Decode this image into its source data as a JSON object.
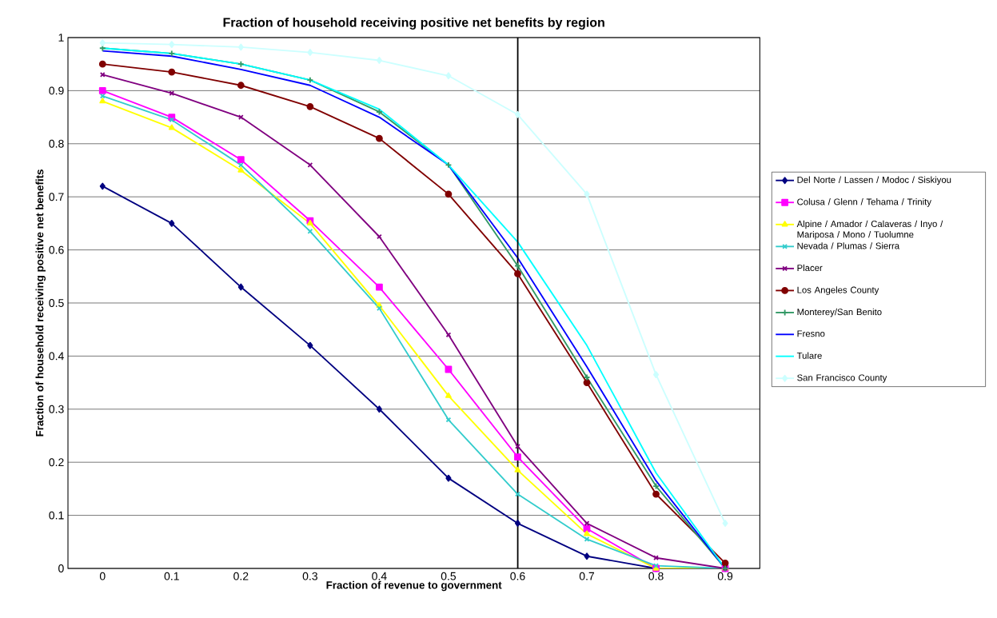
{
  "chart_data": {
    "type": "line",
    "title": "Fraction of household receiving positive net benefits by region",
    "xlabel": "Fraction of revenue to government",
    "ylabel": "Fraction of household receiving positive net benefits",
    "x": [
      0,
      0.1,
      0.2,
      0.3,
      0.4,
      0.5,
      0.6,
      0.7,
      0.8,
      0.9
    ],
    "xlim": [
      -0.05,
      0.95
    ],
    "xticks": [
      0,
      0.1,
      0.2,
      0.3,
      0.4,
      0.5,
      0.6,
      0.7,
      0.8,
      0.9
    ],
    "ylim": [
      0,
      1
    ],
    "yticks": [
      0,
      0.1,
      0.2,
      0.3,
      0.4,
      0.5,
      0.6,
      0.7,
      0.8,
      0.9,
      1
    ],
    "grid": "y",
    "legend": "right",
    "ref_lines": [
      {
        "axis": "x",
        "value": 0.6,
        "color": "#000000"
      }
    ],
    "series": [
      {
        "name": "Del Norte / Lassen / Modoc / Siskiyou",
        "color": "#000080",
        "marker": "diamond",
        "values": [
          0.72,
          0.65,
          0.53,
          0.42,
          0.3,
          0.17,
          0.085,
          0.023,
          0,
          0
        ]
      },
      {
        "name": "Colusa / Glenn / Tehama / Trinity",
        "color": "#ff00ff",
        "marker": "square",
        "values": [
          0.9,
          0.85,
          0.77,
          0.655,
          0.53,
          0.375,
          0.21,
          0.075,
          0,
          0
        ]
      },
      {
        "name": "Alpine / Amador / Calaveras / Inyo / Mariposa / Mono / Tuolumne",
        "color": "#ffff00",
        "marker": "triangle",
        "values": [
          0.88,
          0.83,
          0.75,
          0.65,
          0.495,
          0.325,
          0.185,
          0.065,
          0,
          0
        ]
      },
      {
        "name": "Nevada / Plumas / Sierra",
        "color": "#33cccc",
        "marker": "cross",
        "values": [
          0.89,
          0.845,
          0.76,
          0.635,
          0.49,
          0.28,
          0.14,
          0.055,
          0.005,
          0
        ]
      },
      {
        "name": "Placer",
        "color": "#800080",
        "marker": "cross",
        "values": [
          0.93,
          0.895,
          0.85,
          0.76,
          0.625,
          0.44,
          0.23,
          0.085,
          0.02,
          0
        ]
      },
      {
        "name": "Los Angeles County",
        "color": "#800000",
        "marker": "circle",
        "values": [
          0.95,
          0.935,
          0.91,
          0.87,
          0.81,
          0.705,
          0.555,
          0.35,
          0.14,
          0.01
        ]
      },
      {
        "name": "Monterey/San Benito",
        "color": "#339966",
        "marker": "plus",
        "values": [
          0.98,
          0.97,
          0.95,
          0.92,
          0.86,
          0.76,
          0.57,
          0.36,
          0.155,
          0
        ]
      },
      {
        "name": "Fresno",
        "color": "#0000ff",
        "marker": "none",
        "values": [
          0.975,
          0.965,
          0.94,
          0.91,
          0.85,
          0.76,
          0.585,
          0.38,
          0.165,
          0
        ]
      },
      {
        "name": "Tulare",
        "color": "#00ffff",
        "marker": "none",
        "values": [
          0.98,
          0.97,
          0.95,
          0.92,
          0.865,
          0.76,
          0.615,
          0.42,
          0.18,
          0
        ]
      },
      {
        "name": "San Francisco County",
        "color": "#ccffff",
        "marker": "diamond",
        "values": [
          0.99,
          0.987,
          0.982,
          0.972,
          0.957,
          0.928,
          0.855,
          0.705,
          0.365,
          0.085
        ]
      }
    ]
  }
}
